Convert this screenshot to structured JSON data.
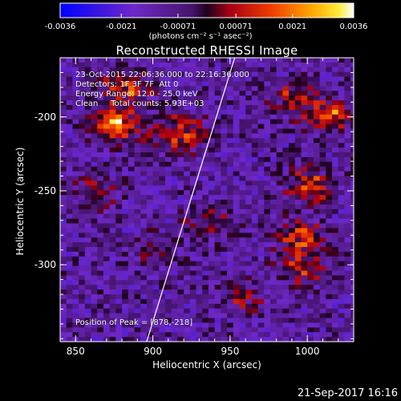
{
  "colorbar": {
    "ticks": [
      "-0.0036",
      "-0.0021",
      "-0.00071",
      "0.00071",
      "0.0021",
      "0.0036"
    ],
    "min": -0.0036,
    "max": 0.0036,
    "units": "(photons cm⁻² s⁻¹ asec⁻²)"
  },
  "chart_data": {
    "type": "heatmap",
    "title": "Reconstructed RHESSI Image",
    "xlabel": "Heliocentric X (arcsec)",
    "ylabel": "Heliocentric Y (arcsec)",
    "xlim": [
      840,
      1030
    ],
    "ylim": [
      -352,
      -160
    ],
    "x_ticks": [
      "850",
      "900",
      "950",
      "1000"
    ],
    "y_ticks": [
      "-200",
      "-250",
      "-300"
    ],
    "x_tick_values": [
      850,
      900,
      950,
      1000
    ],
    "y_tick_values": [
      -200,
      -250,
      -300
    ],
    "limb_line": [
      [
        896,
        -352
      ],
      [
        953,
        -160
      ]
    ],
    "sources": [
      {
        "x": 875,
        "y": -205,
        "intensity": 0.0036
      },
      {
        "x": 915,
        "y": -210,
        "intensity": 0.0033
      },
      {
        "x": 880,
        "y": -180,
        "intensity": 0.0028
      },
      {
        "x": 990,
        "y": -185,
        "intensity": 0.0022
      },
      {
        "x": 1012,
        "y": -197,
        "intensity": 0.0026
      },
      {
        "x": 1000,
        "y": -245,
        "intensity": 0.0024
      },
      {
        "x": 993,
        "y": -280,
        "intensity": 0.0023
      },
      {
        "x": 995,
        "y": -300,
        "intensity": 0.0021
      },
      {
        "x": 935,
        "y": -270,
        "intensity": 0.0016
      },
      {
        "x": 860,
        "y": -250,
        "intensity": 0.0015
      },
      {
        "x": 900,
        "y": -290,
        "intensity": 0.0012
      },
      {
        "x": 955,
        "y": -320,
        "intensity": 0.0013
      }
    ],
    "peak": {
      "x": 878,
      "y": -218
    }
  },
  "annotations": {
    "time": "23-Oct-2015 22:06:36.000 to 22:16:36.000",
    "detectors": "Detectors: 1F 3F 7F  Att 0",
    "energy": "Energy Range: 12.0 - 25.0 keV",
    "clean": "Clean     Total counts: 5.93E+03",
    "peak": "Position of Peak = [878,-218]"
  },
  "footer": "21-Sep-2017 16:16"
}
